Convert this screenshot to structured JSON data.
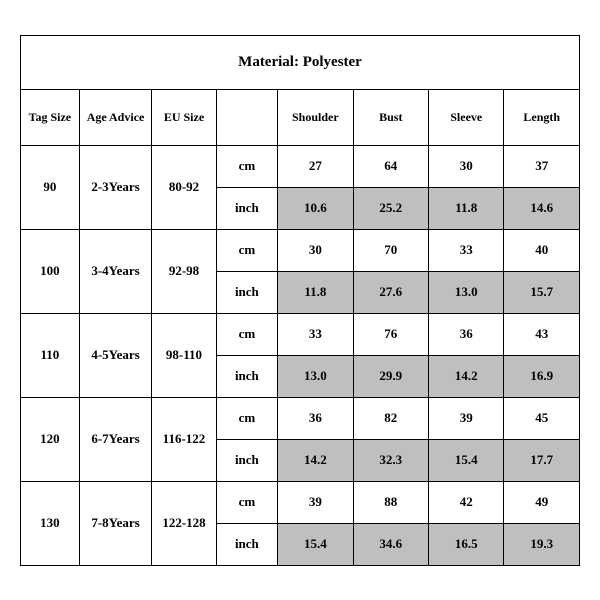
{
  "title": "Material: Polyester",
  "headers": {
    "tag": "Tag Size",
    "age": "Age Advice",
    "eu": "EU Size",
    "unit": "",
    "shoulder": "Shoulder",
    "bust": "Bust",
    "sleeve": "Sleeve",
    "length": "Length"
  },
  "units": {
    "cm": "cm",
    "inch": "inch"
  },
  "rows": [
    {
      "tag": "90",
      "age": "2-3Years",
      "eu": "80-92",
      "cm": {
        "shoulder": "27",
        "bust": "64",
        "sleeve": "30",
        "length": "37"
      },
      "inch": {
        "shoulder": "10.6",
        "bust": "25.2",
        "sleeve": "11.8",
        "length": "14.6"
      }
    },
    {
      "tag": "100",
      "age": "3-4Years",
      "eu": "92-98",
      "cm": {
        "shoulder": "30",
        "bust": "70",
        "sleeve": "33",
        "length": "40"
      },
      "inch": {
        "shoulder": "11.8",
        "bust": "27.6",
        "sleeve": "13.0",
        "length": "15.7"
      }
    },
    {
      "tag": "110",
      "age": "4-5Years",
      "eu": "98-110",
      "cm": {
        "shoulder": "33",
        "bust": "76",
        "sleeve": "36",
        "length": "43"
      },
      "inch": {
        "shoulder": "13.0",
        "bust": "29.9",
        "sleeve": "14.2",
        "length": "16.9"
      }
    },
    {
      "tag": "120",
      "age": "6-7Years",
      "eu": "116-122",
      "cm": {
        "shoulder": "36",
        "bust": "82",
        "sleeve": "39",
        "length": "45"
      },
      "inch": {
        "shoulder": "14.2",
        "bust": "32.3",
        "sleeve": "15.4",
        "length": "17.7"
      }
    },
    {
      "tag": "130",
      "age": "7-8Years",
      "eu": "122-128",
      "cm": {
        "shoulder": "39",
        "bust": "88",
        "sleeve": "42",
        "length": "49"
      },
      "inch": {
        "shoulder": "15.4",
        "bust": "34.6",
        "sleeve": "16.5",
        "length": "19.3"
      }
    }
  ],
  "colors": {
    "shade": "#bfbfbf",
    "border": "#000000",
    "bg": "#ffffff"
  }
}
